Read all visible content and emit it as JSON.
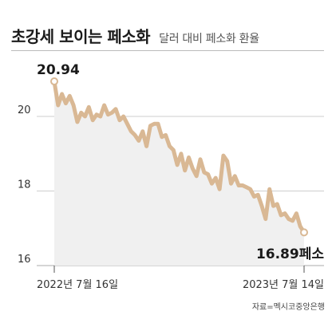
{
  "header": {
    "title": "초강세 보이는 페소화",
    "subtitle": "달러 대비 페소화 환율"
  },
  "source": "자료=멕시코중앙은행",
  "colors": {
    "line": "#d9b894",
    "area": "#f0f0f0",
    "grid": "#bcbcbc",
    "marker_fill": "#ffffff"
  },
  "chart_data": {
    "type": "area",
    "title": "초강세 보이는 페소화",
    "subtitle": "달러 대비 페소화 환율",
    "xlabel": "",
    "ylabel": "",
    "unit": "페소",
    "ylim": [
      16,
      21
    ],
    "yticks": [
      "16",
      "18",
      "20"
    ],
    "ytick_values": [
      16,
      18,
      20
    ],
    "grid": true,
    "xtick_labels": [
      "2022년 7월 16일",
      "2023년 7월 14일"
    ],
    "start_label": "20.94",
    "end_label": "16.89페소",
    "series": [
      {
        "values": [
          20.94,
          20.3,
          20.6,
          20.35,
          20.55,
          20.3,
          19.85,
          20.1,
          20.0,
          20.25,
          19.9,
          20.05,
          20.0,
          20.3,
          20.05,
          20.1,
          20.2,
          19.9,
          20.0,
          19.8,
          19.6,
          19.5,
          19.35,
          19.6,
          19.2,
          19.75,
          19.8,
          19.8,
          19.45,
          19.5,
          19.2,
          19.1,
          18.7,
          19.0,
          18.55,
          18.9,
          18.6,
          18.4,
          18.85,
          18.5,
          18.45,
          18.2,
          18.35,
          18.05,
          18.95,
          18.8,
          18.2,
          18.4,
          18.15,
          18.15,
          18.1,
          18.05,
          17.85,
          17.9,
          17.6,
          17.25,
          18.05,
          17.6,
          17.65,
          17.35,
          17.4,
          17.25,
          17.2,
          17.4,
          17.05,
          16.89
        ]
      }
    ]
  }
}
